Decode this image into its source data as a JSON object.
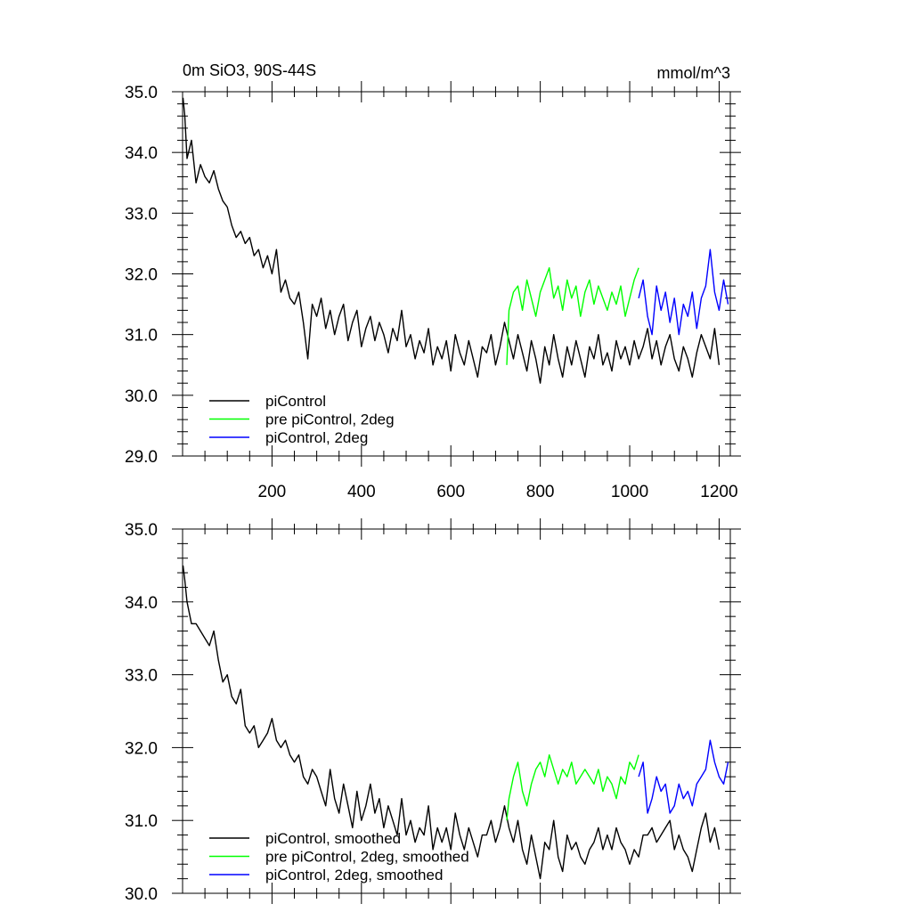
{
  "chart_data": [
    {
      "type": "line",
      "title": "0m SiO3, 90S-44S",
      "units": "mmol/m^3",
      "xlim": [
        0,
        1225
      ],
      "ylim": [
        29.0,
        35.0
      ],
      "y_ticks": [
        "29.0",
        "30.0",
        "31.0",
        "32.0",
        "33.0",
        "34.0",
        "35.0"
      ],
      "x_ticks": [
        "200",
        "400",
        "600",
        "800",
        "1000",
        "1200"
      ],
      "legend_position": "bottom-left",
      "series": [
        {
          "name": "piControl",
          "color": "#000000",
          "x": [
            1,
            5,
            10,
            20,
            30,
            40,
            50,
            60,
            70,
            80,
            90,
            100,
            110,
            120,
            130,
            140,
            150,
            160,
            170,
            180,
            190,
            200,
            210,
            220,
            230,
            240,
            250,
            260,
            270,
            280,
            290,
            300,
            310,
            320,
            330,
            340,
            350,
            360,
            370,
            380,
            390,
            400,
            410,
            420,
            430,
            440,
            450,
            460,
            470,
            480,
            490,
            500,
            510,
            520,
            530,
            540,
            550,
            560,
            570,
            580,
            590,
            600,
            610,
            620,
            630,
            640,
            650,
            660,
            670,
            680,
            690,
            700,
            710,
            720,
            730,
            740,
            750,
            760,
            770,
            780,
            790,
            800,
            810,
            820,
            830,
            840,
            850,
            860,
            870,
            880,
            890,
            900,
            910,
            920,
            930,
            940,
            950,
            960,
            970,
            980,
            990,
            1000,
            1010,
            1020,
            1030,
            1040,
            1050,
            1060,
            1070,
            1080,
            1090,
            1100,
            1110,
            1120,
            1130,
            1140,
            1150,
            1160,
            1170,
            1180,
            1190,
            1200
          ],
          "values": [
            34.9,
            34.6,
            33.9,
            34.2,
            33.5,
            33.8,
            33.6,
            33.5,
            33.7,
            33.4,
            33.2,
            33.1,
            32.8,
            32.6,
            32.7,
            32.5,
            32.6,
            32.3,
            32.4,
            32.1,
            32.3,
            32.0,
            32.4,
            31.7,
            31.9,
            31.6,
            31.5,
            31.7,
            31.2,
            30.6,
            31.5,
            31.3,
            31.6,
            31.1,
            31.4,
            31.0,
            31.3,
            31.5,
            30.9,
            31.2,
            31.4,
            30.8,
            31.1,
            31.3,
            30.9,
            31.2,
            31.0,
            30.7,
            31.1,
            30.9,
            31.4,
            30.8,
            31.0,
            30.6,
            30.9,
            30.7,
            31.1,
            30.5,
            30.8,
            30.6,
            30.9,
            30.4,
            31.0,
            30.7,
            30.5,
            30.9,
            30.6,
            30.3,
            30.8,
            30.7,
            31.0,
            30.5,
            30.8,
            31.2,
            30.9,
            30.6,
            31.0,
            30.7,
            30.4,
            30.9,
            30.6,
            30.2,
            30.8,
            30.5,
            31.0,
            30.6,
            30.3,
            30.8,
            30.5,
            30.9,
            30.6,
            30.3,
            30.8,
            30.6,
            31.0,
            30.5,
            30.7,
            30.4,
            30.9,
            30.6,
            30.8,
            30.5,
            30.9,
            30.6,
            30.8,
            31.1,
            30.6,
            30.9,
            30.5,
            30.8,
            31.0,
            30.6,
            30.4,
            30.8,
            30.6,
            30.3,
            30.7,
            31.0,
            30.8,
            30.6,
            31.1,
            30.5
          ]
        },
        {
          "name": "pre piControl, 2deg",
          "color": "#00ff00",
          "x": [
            725,
            730,
            740,
            750,
            760,
            770,
            780,
            790,
            800,
            810,
            820,
            830,
            840,
            850,
            860,
            870,
            880,
            890,
            900,
            910,
            920,
            930,
            940,
            950,
            960,
            970,
            980,
            990,
            1000,
            1010,
            1020
          ],
          "values": [
            30.5,
            31.4,
            31.7,
            31.8,
            31.4,
            31.9,
            31.6,
            31.3,
            31.7,
            31.9,
            32.1,
            31.6,
            31.8,
            31.4,
            31.9,
            31.6,
            31.8,
            31.3,
            31.7,
            31.9,
            31.5,
            31.8,
            31.6,
            31.4,
            31.7,
            31.5,
            31.8,
            31.3,
            31.6,
            31.9,
            32.1
          ]
        },
        {
          "name": "piControl, 2deg",
          "color": "#0000ff",
          "x": [
            1020,
            1030,
            1040,
            1050,
            1060,
            1070,
            1080,
            1090,
            1100,
            1110,
            1120,
            1130,
            1140,
            1150,
            1160,
            1170,
            1180,
            1190,
            1200,
            1210,
            1220
          ],
          "values": [
            31.6,
            31.9,
            31.3,
            31.0,
            31.8,
            31.4,
            31.7,
            31.2,
            31.6,
            31.0,
            31.5,
            31.3,
            31.7,
            31.1,
            31.6,
            31.8,
            32.4,
            31.7,
            31.4,
            31.9,
            31.5
          ]
        }
      ]
    },
    {
      "type": "line",
      "title": "",
      "xlim": [
        0,
        1225
      ],
      "ylim": [
        30.0,
        35.0
      ],
      "y_ticks": [
        "30.0",
        "31.0",
        "32.0",
        "33.0",
        "34.0",
        "35.0"
      ],
      "legend_position": "bottom-left",
      "series": [
        {
          "name": "piControl, smoothed",
          "color": "#000000",
          "x": [
            1,
            5,
            10,
            20,
            30,
            40,
            50,
            60,
            70,
            80,
            90,
            100,
            110,
            120,
            130,
            140,
            150,
            160,
            170,
            180,
            190,
            200,
            210,
            220,
            230,
            240,
            250,
            260,
            270,
            280,
            290,
            300,
            310,
            320,
            330,
            340,
            350,
            360,
            370,
            380,
            390,
            400,
            410,
            420,
            430,
            440,
            450,
            460,
            470,
            480,
            490,
            500,
            510,
            520,
            530,
            540,
            550,
            560,
            570,
            580,
            590,
            600,
            610,
            620,
            630,
            640,
            650,
            660,
            670,
            680,
            690,
            700,
            710,
            720,
            730,
            740,
            750,
            760,
            770,
            780,
            790,
            800,
            810,
            820,
            830,
            840,
            850,
            860,
            870,
            880,
            890,
            900,
            910,
            920,
            930,
            940,
            950,
            960,
            970,
            980,
            990,
            1000,
            1010,
            1020,
            1030,
            1040,
            1050,
            1060,
            1070,
            1080,
            1090,
            1100,
            1110,
            1120,
            1130,
            1140,
            1150,
            1160,
            1170,
            1180,
            1190,
            1200
          ],
          "values": [
            34.5,
            34.3,
            34.0,
            33.7,
            33.7,
            33.6,
            33.5,
            33.4,
            33.6,
            33.2,
            32.9,
            33.0,
            32.7,
            32.6,
            32.8,
            32.3,
            32.2,
            32.3,
            32.0,
            32.1,
            32.2,
            32.4,
            32.1,
            32.0,
            32.1,
            31.9,
            31.8,
            31.9,
            31.6,
            31.5,
            31.7,
            31.6,
            31.4,
            31.2,
            31.7,
            31.3,
            31.1,
            31.5,
            31.2,
            30.9,
            31.4,
            31.0,
            31.2,
            31.5,
            31.1,
            31.3,
            30.9,
            31.2,
            31.0,
            30.8,
            31.3,
            30.8,
            31.0,
            30.7,
            30.9,
            30.8,
            31.2,
            30.6,
            30.9,
            30.7,
            30.9,
            30.6,
            31.1,
            30.8,
            30.6,
            30.9,
            30.7,
            30.5,
            30.8,
            30.8,
            31.0,
            30.7,
            30.9,
            31.2,
            30.9,
            30.7,
            31.0,
            30.6,
            30.4,
            30.8,
            30.5,
            30.2,
            30.7,
            30.6,
            31.0,
            30.5,
            30.3,
            30.8,
            30.6,
            30.7,
            30.5,
            30.4,
            30.6,
            30.7,
            30.9,
            30.6,
            30.8,
            30.6,
            30.9,
            30.7,
            30.6,
            30.4,
            30.6,
            30.5,
            30.8,
            30.8,
            30.9,
            30.7,
            30.8,
            30.9,
            31.0,
            30.6,
            30.8,
            30.6,
            30.5,
            30.3,
            30.6,
            30.9,
            31.1,
            30.7,
            30.9,
            30.6
          ]
        },
        {
          "name": "pre piControl, 2deg, smoothed",
          "color": "#00ff00",
          "x": [
            725,
            730,
            740,
            750,
            760,
            770,
            780,
            790,
            800,
            810,
            820,
            830,
            840,
            850,
            860,
            870,
            880,
            890,
            900,
            910,
            920,
            930,
            940,
            950,
            960,
            970,
            980,
            990,
            1000,
            1010,
            1020
          ],
          "values": [
            31.0,
            31.3,
            31.6,
            31.8,
            31.4,
            31.2,
            31.5,
            31.7,
            31.8,
            31.6,
            31.9,
            31.7,
            31.5,
            31.7,
            31.6,
            31.8,
            31.5,
            31.6,
            31.7,
            31.6,
            31.5,
            31.7,
            31.4,
            31.6,
            31.5,
            31.3,
            31.6,
            31.5,
            31.8,
            31.7,
            31.9
          ]
        },
        {
          "name": "piControl, 2deg, smoothed",
          "color": "#0000ff",
          "x": [
            1020,
            1030,
            1040,
            1050,
            1060,
            1070,
            1080,
            1090,
            1100,
            1110,
            1120,
            1130,
            1140,
            1150,
            1160,
            1170,
            1180,
            1190,
            1200,
            1210,
            1220
          ],
          "values": [
            31.6,
            31.8,
            31.1,
            31.3,
            31.6,
            31.4,
            31.5,
            31.1,
            31.2,
            31.5,
            31.3,
            31.4,
            31.2,
            31.5,
            31.6,
            31.7,
            32.1,
            31.8,
            31.6,
            31.5,
            31.8
          ]
        }
      ]
    }
  ]
}
